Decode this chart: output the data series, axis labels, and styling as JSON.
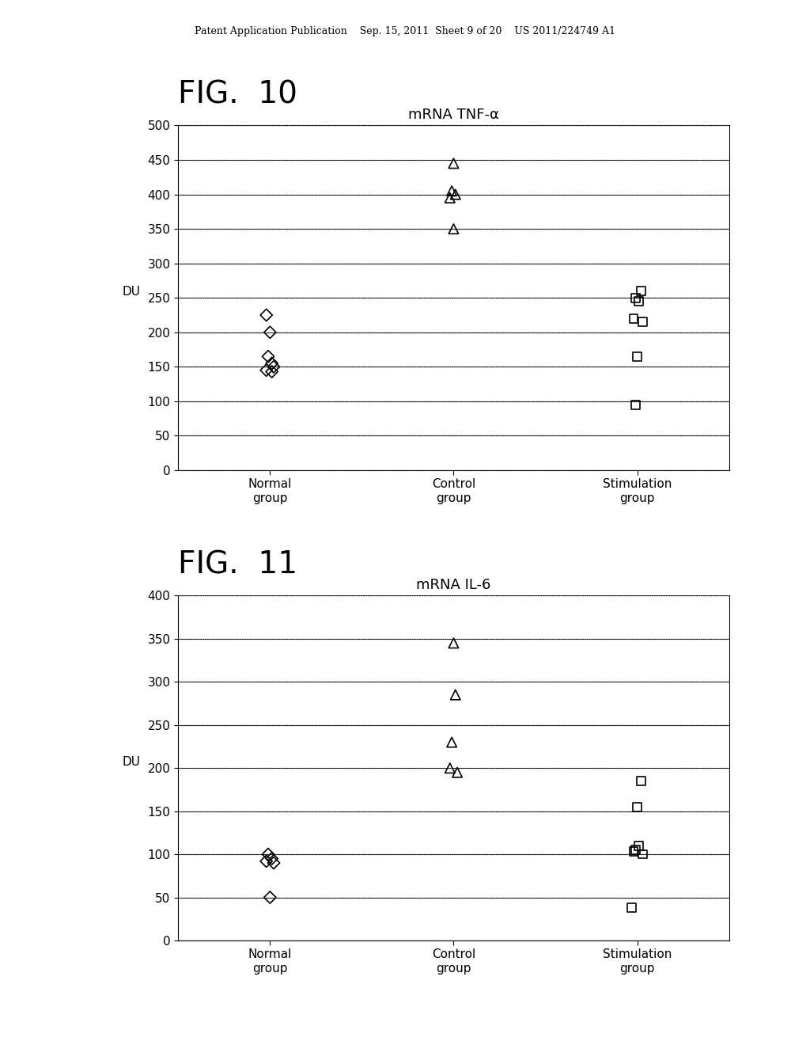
{
  "fig10": {
    "title": "mRNA TNF-α",
    "fig_label": "FIG.  10",
    "ylabel": "DU",
    "ylim": [
      0,
      500
    ],
    "yticks": [
      0,
      50,
      100,
      150,
      200,
      250,
      300,
      350,
      400,
      450,
      500
    ],
    "categories": [
      "Normal\ngroup",
      "Control\ngroup",
      "Stimulation\ngroup"
    ],
    "normal_group": [
      225,
      200,
      165,
      155,
      150,
      145,
      143
    ],
    "control_group": [
      445,
      405,
      400,
      395,
      350
    ],
    "stimulation_group": [
      260,
      250,
      245,
      220,
      215,
      165,
      95
    ]
  },
  "fig11": {
    "title": "mRNA IL-6",
    "fig_label": "FIG.  11",
    "ylabel": "DU",
    "ylim": [
      0,
      400
    ],
    "yticks": [
      0,
      50,
      100,
      150,
      200,
      250,
      300,
      350,
      400
    ],
    "categories": [
      "Normal\ngroup",
      "Control\ngroup",
      "Stimulation\ngroup"
    ],
    "normal_group": [
      100,
      95,
      92,
      90,
      50
    ],
    "control_group": [
      345,
      285,
      230,
      200,
      195
    ],
    "stimulation_group": [
      185,
      155,
      110,
      105,
      103,
      100,
      38
    ]
  },
  "background_color": "#ffffff",
  "header_text": "Patent Application Publication    Sep. 15, 2011  Sheet 9 of 20    US 2011/224749 A1",
  "fig_label_fontsize": 28,
  "title_fontsize": 13,
  "axis_fontsize": 11,
  "tick_fontsize": 11
}
